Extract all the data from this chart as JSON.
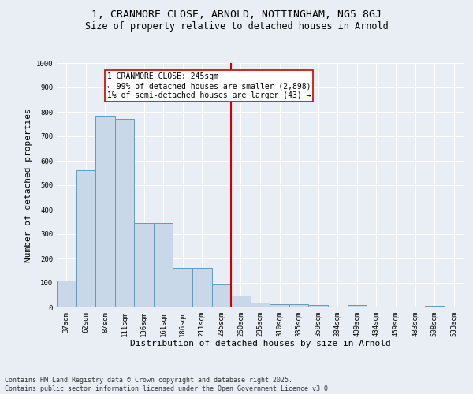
{
  "title_line1": "1, CRANMORE CLOSE, ARNOLD, NOTTINGHAM, NG5 8GJ",
  "title_line2": "Size of property relative to detached houses in Arnold",
  "xlabel": "Distribution of detached houses by size in Arnold",
  "ylabel": "Number of detached properties",
  "categories": [
    "37sqm",
    "62sqm",
    "87sqm",
    "111sqm",
    "136sqm",
    "161sqm",
    "186sqm",
    "211sqm",
    "235sqm",
    "260sqm",
    "285sqm",
    "310sqm",
    "335sqm",
    "359sqm",
    "384sqm",
    "409sqm",
    "434sqm",
    "459sqm",
    "483sqm",
    "508sqm",
    "533sqm"
  ],
  "values": [
    110,
    560,
    785,
    770,
    345,
    345,
    160,
    160,
    95,
    50,
    20,
    13,
    13,
    10,
    0,
    10,
    0,
    0,
    0,
    5,
    0
  ],
  "bar_color": "#c8d8e8",
  "bar_edge_color": "#6699bb",
  "vline_x": 8.5,
  "vline_color": "#cc0000",
  "annotation_text": "1 CRANMORE CLOSE: 245sqm\n← 99% of detached houses are smaller (2,898)\n1% of semi-detached houses are larger (43) →",
  "annotation_box_color": "#ffffff",
  "annotation_box_edge": "#cc0000",
  "ylim": [
    0,
    1000
  ],
  "yticks": [
    0,
    100,
    200,
    300,
    400,
    500,
    600,
    700,
    800,
    900,
    1000
  ],
  "background_color": "#e8eef4",
  "grid_color": "#ffffff",
  "footer_line1": "Contains HM Land Registry data © Crown copyright and database right 2025.",
  "footer_line2": "Contains public sector information licensed under the Open Government Licence v3.0.",
  "title_fontsize": 9.5,
  "subtitle_fontsize": 8.5,
  "axis_label_fontsize": 8,
  "tick_fontsize": 6.5,
  "annotation_fontsize": 7,
  "footer_fontsize": 6
}
